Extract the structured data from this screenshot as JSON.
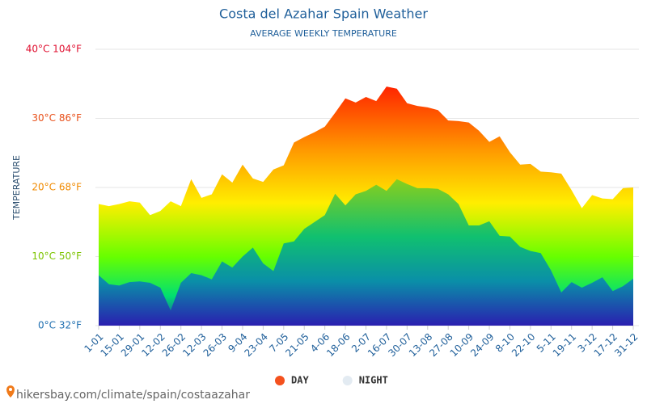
{
  "chart_data": {
    "type": "area",
    "title": "Costa del Azahar Spain Weather",
    "subtitle": "AVERAGE WEEKLY TEMPERATURE",
    "y_label": "TEMPERATURE",
    "source": "hikersbay.com/climate/spain/costaazahar",
    "categories": [
      "1-01",
      null,
      "15-01",
      null,
      "29-01",
      null,
      "12-02",
      null,
      "26-02",
      null,
      "12-03",
      null,
      "26-03",
      null,
      "9-04",
      null,
      "23-04",
      null,
      "7-05",
      null,
      "21-05",
      null,
      "4-06",
      null,
      "18-06",
      null,
      "2-07",
      null,
      "16-07",
      null,
      "30-07",
      null,
      "13-08",
      null,
      "27-08",
      null,
      "10-09",
      null,
      "24-09",
      null,
      "8-10",
      null,
      "22-10",
      null,
      "5-11",
      null,
      "19-11",
      null,
      "3-12",
      null,
      "17-12",
      null,
      "31-12"
    ],
    "series": [
      {
        "name": "DAY",
        "color": "#f4511e",
        "values": [
          17.6,
          17.3,
          17.6,
          18.0,
          17.8,
          16.0,
          16.6,
          18.0,
          17.3,
          21.2,
          18.5,
          19.0,
          21.9,
          20.7,
          23.3,
          21.3,
          20.8,
          22.6,
          23.2,
          26.5,
          27.3,
          28.0,
          28.8,
          30.8,
          32.9,
          32.3,
          33.1,
          32.5,
          34.6,
          34.3,
          32.2,
          31.8,
          31.6,
          31.2,
          29.7,
          29.6,
          29.4,
          28.2,
          26.6,
          27.4,
          25.1,
          23.3,
          23.4,
          22.3,
          22.2,
          22.0,
          19.6,
          17.0,
          18.9,
          18.4,
          18.3,
          19.9,
          20.0
        ]
      },
      {
        "name": "NIGHT",
        "color": "#e3ebf2",
        "values": [
          7.3,
          6.0,
          5.8,
          6.3,
          6.4,
          6.2,
          5.5,
          2.2,
          6.2,
          7.6,
          7.3,
          6.7,
          9.3,
          8.4,
          10.0,
          11.3,
          9.0,
          7.9,
          11.9,
          12.2,
          14.0,
          15.0,
          16.0,
          19.1,
          17.4,
          19.0,
          19.5,
          20.4,
          19.5,
          21.2,
          20.5,
          19.9,
          19.9,
          19.8,
          19.0,
          17.6,
          14.5,
          14.5,
          15.1,
          13.0,
          12.9,
          11.4,
          10.8,
          10.5,
          8.0,
          4.8,
          6.3,
          5.5,
          6.2,
          7.0,
          5.0,
          5.7,
          6.8
        ]
      }
    ],
    "ylim": [
      0,
      40
    ],
    "yticks": [
      {
        "value": 0,
        "label": "0°C 32°F"
      },
      {
        "value": 10,
        "label": "10°C 50°F"
      },
      {
        "value": 20,
        "label": "20°C 68°F"
      },
      {
        "value": 30,
        "label": "30°C 86°F"
      },
      {
        "value": 40,
        "label": "40°C 104°F"
      }
    ],
    "grid": true,
    "legend": "bottom"
  }
}
